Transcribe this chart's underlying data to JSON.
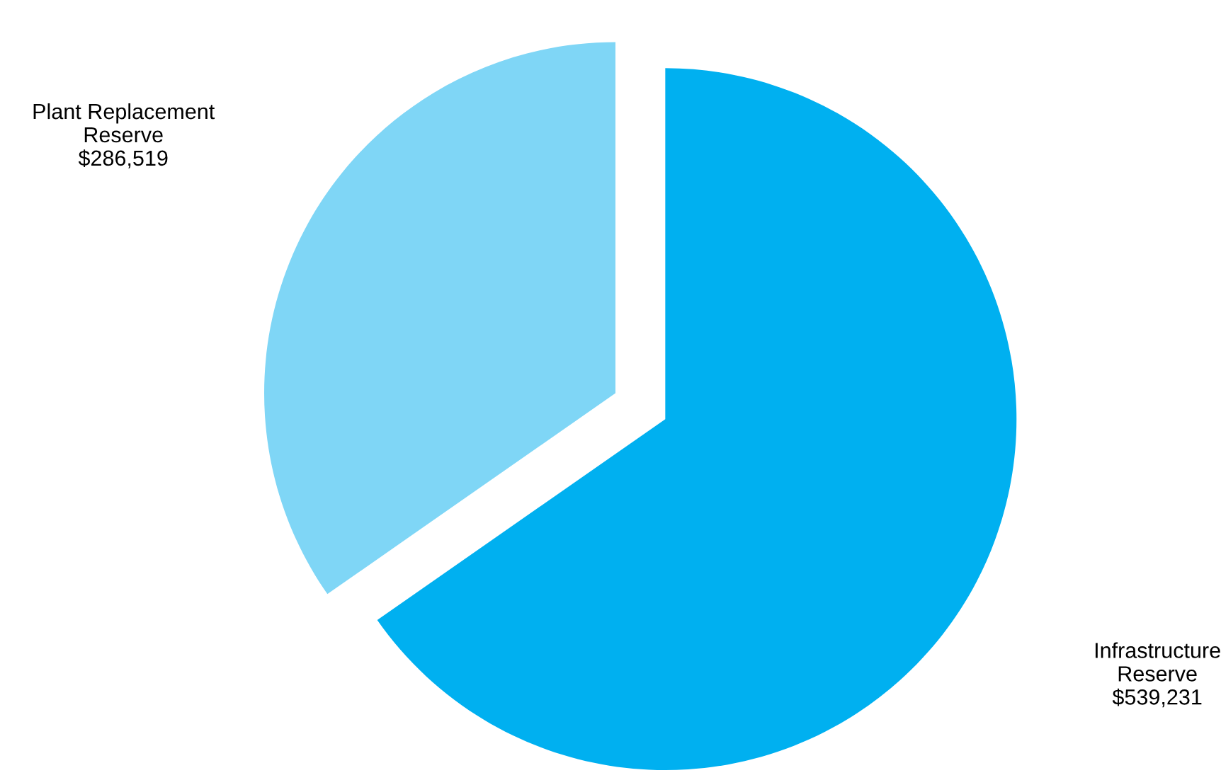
{
  "chart_data": {
    "type": "pie",
    "categories": [
      "Plant Replacement Reserve",
      "Infrastructure Reserve"
    ],
    "values": [
      286519,
      539231
    ],
    "value_labels": [
      "$286,519",
      "$539,231"
    ],
    "colors": [
      "#7fd6f6",
      "#00b0f0"
    ]
  }
}
